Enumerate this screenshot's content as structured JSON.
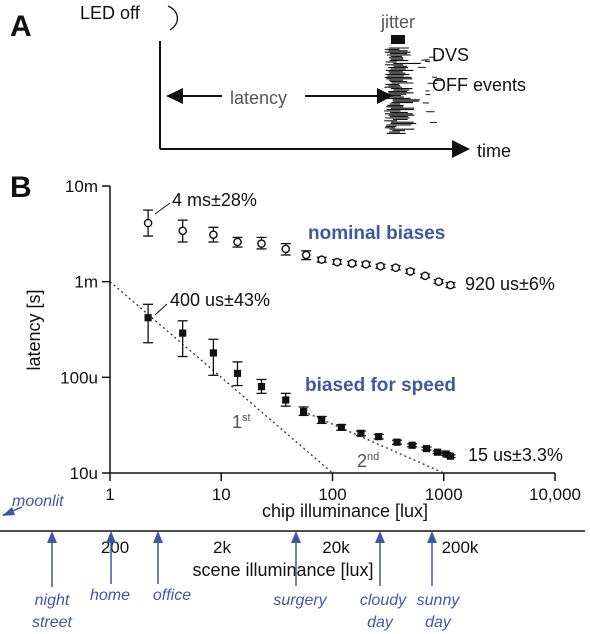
{
  "panel_a": {
    "label": "A",
    "led_off": "LED off",
    "jitter": "jitter",
    "latency": "latency",
    "dvs": "DVS",
    "off_events": "OFF events",
    "time": "time"
  },
  "panel_b": {
    "label": "B",
    "annotations": {
      "nominal_max": "4 ms±28%",
      "nominal_min": "920 us±6%",
      "fast_max": "400 us±43%",
      "fast_min": "15 us±3.3%",
      "first": "1",
      "first_sup": "st",
      "second": "2",
      "second_sup": "nd"
    },
    "scene_axis": {
      "title": "scene illuminance [lux]",
      "ticks": [
        "200",
        "2k",
        "20k",
        "200k"
      ],
      "conditions": [
        {
          "id": "moonlit",
          "label": "moonlit"
        },
        {
          "id": "night-street",
          "label": "night street"
        },
        {
          "id": "home",
          "label": "home"
        },
        {
          "id": "office",
          "label": "office"
        },
        {
          "id": "surgery",
          "label": "surgery"
        },
        {
          "id": "cloudy-day",
          "label": "cloudy day"
        },
        {
          "id": "sunny-day",
          "label": "sunny day"
        }
      ]
    }
  },
  "chart_data": {
    "type": "scatter",
    "xlabel": "chip illuminance [lux]",
    "ylabel": "latency [s]",
    "x_scale": "log",
    "y_scale": "log",
    "xlim": [
      1,
      10000
    ],
    "ylim": [
      1e-05,
      0.01
    ],
    "x_ticks": [
      {
        "v": 1,
        "label": "1"
      },
      {
        "v": 10,
        "label": "10"
      },
      {
        "v": 100,
        "label": "100"
      },
      {
        "v": 1000,
        "label": "1000"
      },
      {
        "v": 10000,
        "label": "10,000"
      }
    ],
    "y_ticks": [
      {
        "v": 1e-05,
        "label": "10u"
      },
      {
        "v": 0.0001,
        "label": "100u"
      },
      {
        "v": 0.001,
        "label": "1m"
      },
      {
        "v": 0.01,
        "label": "10m"
      }
    ],
    "series": [
      {
        "name": "nominal biases",
        "marker": "circle",
        "color": "#111111",
        "points": [
          {
            "x": 2.2,
            "y": 0.0041,
            "lo": 0.003,
            "hi": 0.0056
          },
          {
            "x": 4.5,
            "y": 0.0034,
            "lo": 0.0026,
            "hi": 0.0044
          },
          {
            "x": 8.5,
            "y": 0.0031,
            "lo": 0.0026,
            "hi": 0.0037
          },
          {
            "x": 14,
            "y": 0.0026,
            "lo": 0.0023,
            "hi": 0.0029
          },
          {
            "x": 23,
            "y": 0.0025,
            "lo": 0.0022,
            "hi": 0.0029
          },
          {
            "x": 38,
            "y": 0.0022,
            "lo": 0.0019,
            "hi": 0.0025
          },
          {
            "x": 58,
            "y": 0.0019,
            "lo": 0.0017,
            "hi": 0.0021
          },
          {
            "x": 80,
            "y": 0.0017,
            "lo": 0.0016,
            "hi": 0.0018
          },
          {
            "x": 110,
            "y": 0.0016,
            "lo": 0.00152,
            "hi": 0.0017
          },
          {
            "x": 150,
            "y": 0.00155,
            "lo": 0.00148,
            "hi": 0.00163
          },
          {
            "x": 200,
            "y": 0.00152,
            "lo": 0.00145,
            "hi": 0.0016
          },
          {
            "x": 270,
            "y": 0.00145,
            "lo": 0.00138,
            "hi": 0.00152
          },
          {
            "x": 370,
            "y": 0.0014,
            "lo": 0.00133,
            "hi": 0.00147
          },
          {
            "x": 500,
            "y": 0.00128,
            "lo": 0.00122,
            "hi": 0.00135
          },
          {
            "x": 680,
            "y": 0.00115,
            "lo": 0.0011,
            "hi": 0.0012
          },
          {
            "x": 900,
            "y": 0.001,
            "lo": 0.00096,
            "hi": 0.00105
          },
          {
            "x": 1150,
            "y": 0.00092,
            "lo": 0.00087,
            "hi": 0.00098
          }
        ]
      },
      {
        "name": "biased for speed",
        "marker": "square",
        "color": "#111111",
        "points": [
          {
            "x": 2.2,
            "y": 0.00042,
            "lo": 0.00023,
            "hi": 0.00058
          },
          {
            "x": 4.5,
            "y": 0.00029,
            "lo": 0.000165,
            "hi": 0.00039
          },
          {
            "x": 8.5,
            "y": 0.00018,
            "lo": 0.000105,
            "hi": 0.00025
          },
          {
            "x": 14,
            "y": 0.00011,
            "lo": 8.2e-05,
            "hi": 0.000145
          },
          {
            "x": 23,
            "y": 8e-05,
            "lo": 6.8e-05,
            "hi": 9.5e-05
          },
          {
            "x": 38,
            "y": 5.8e-05,
            "lo": 5e-05,
            "hi": 6.8e-05
          },
          {
            "x": 55,
            "y": 4.4e-05,
            "lo": 4e-05,
            "hi": 4.9e-05
          },
          {
            "x": 80,
            "y": 3.6e-05,
            "lo": 3.3e-05,
            "hi": 3.9e-05
          },
          {
            "x": 120,
            "y": 3e-05,
            "lo": 2.8e-05,
            "hi": 3.2e-05
          },
          {
            "x": 180,
            "y": 2.6e-05,
            "lo": 2.45e-05,
            "hi": 2.75e-05
          },
          {
            "x": 260,
            "y": 2.4e-05,
            "lo": 2.27e-05,
            "hi": 2.53e-05
          },
          {
            "x": 380,
            "y": 2.1e-05,
            "lo": 2e-05,
            "hi": 2.2e-05
          },
          {
            "x": 520,
            "y": 1.95e-05,
            "lo": 1.88e-05,
            "hi": 2.02e-05
          },
          {
            "x": 700,
            "y": 1.8e-05,
            "lo": 1.74e-05,
            "hi": 1.86e-05
          },
          {
            "x": 880,
            "y": 1.65e-05,
            "lo": 1.6e-05,
            "hi": 1.7e-05
          },
          {
            "x": 1050,
            "y": 1.58e-05,
            "lo": 1.53e-05,
            "hi": 1.63e-05
          },
          {
            "x": 1150,
            "y": 1.5e-05,
            "lo": 1.45e-05,
            "hi": 1.55e-05
          }
        ]
      }
    ],
    "reference_lines": [
      {
        "name": "1st order",
        "style": "dotted",
        "from": {
          "x": 1,
          "y": 0.001
        },
        "to": {
          "x": 100,
          "y": 1e-05
        }
      },
      {
        "name": "2nd order",
        "style": "dotted",
        "from": {
          "x": 55,
          "y": 4.4e-05
        },
        "to": {
          "x": 1000,
          "y": 1e-05
        }
      }
    ]
  }
}
